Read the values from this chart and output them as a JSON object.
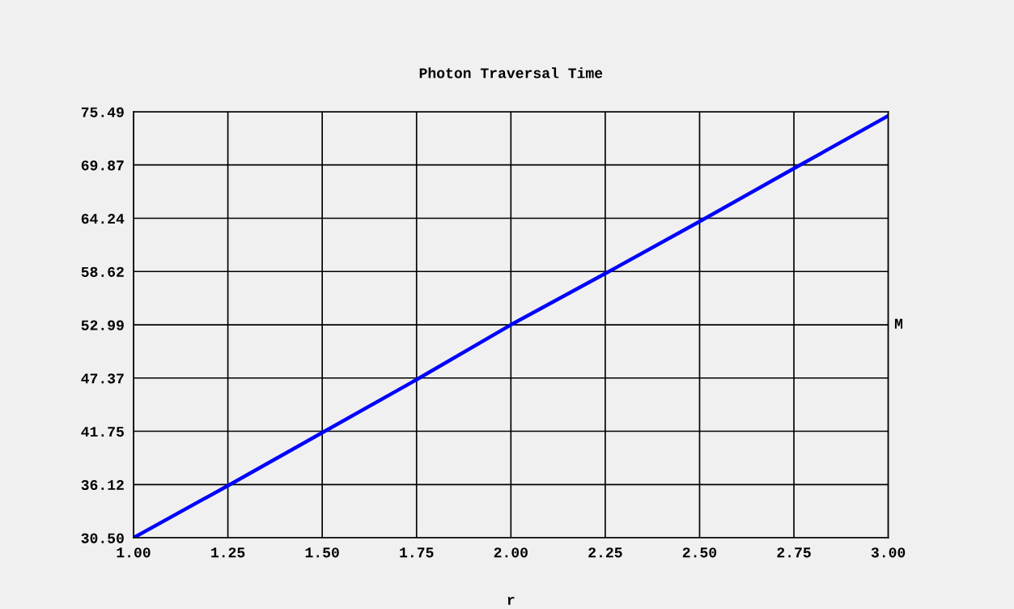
{
  "chart_data": {
    "type": "line",
    "title": "Photon Traversal Time",
    "xlabel": "r",
    "y2label": "M",
    "x": [
      1.0,
      1.25,
      1.5,
      1.75,
      2.0,
      2.25,
      2.5,
      2.75,
      3.0
    ],
    "series": [
      {
        "color": "#0000ff",
        "values": [
          30.5,
          36.0,
          41.6,
          47.2,
          52.99,
          58.4,
          63.9,
          69.5,
          75.06
        ]
      }
    ],
    "xlim": [
      1.0,
      3.0
    ],
    "ylim": [
      30.5,
      75.49
    ],
    "xticks": [
      {
        "value": 1.0,
        "label": "1.00"
      },
      {
        "value": 1.25,
        "label": "1.25"
      },
      {
        "value": 1.5,
        "label": "1.50"
      },
      {
        "value": 1.75,
        "label": "1.75"
      },
      {
        "value": 2.0,
        "label": "2.00"
      },
      {
        "value": 2.25,
        "label": "2.25"
      },
      {
        "value": 2.5,
        "label": "2.50"
      },
      {
        "value": 2.75,
        "label": "2.75"
      },
      {
        "value": 3.0,
        "label": "3.00"
      }
    ],
    "yticks": [
      {
        "value": 30.5,
        "label": "30.50"
      },
      36.12,
      41.75,
      47.37,
      52.99,
      58.62,
      64.24,
      69.87,
      75.49
    ],
    "grid": true,
    "marker": "none",
    "line_style": "solid"
  }
}
